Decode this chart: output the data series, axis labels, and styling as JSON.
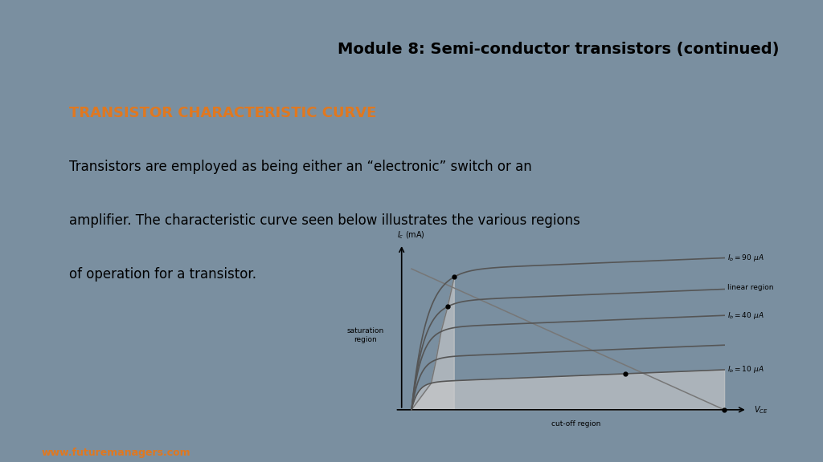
{
  "title": "Module 8: Semi-conductor transistors (continued)",
  "heading": "TRANSISTOR CHARACTERISTIC CURVE",
  "heading_color": "#E07820",
  "body_text_line1": "Transistors are employed as being either an “electronic” switch or an",
  "body_text_line2": "amplifier. The characteristic curve seen below illustrates the various regions",
  "body_text_line3": "of operation for a transistor.",
  "bg_color": "#ffffff",
  "outer_bg": "#7a8fa0",
  "title_fontsize": 14,
  "heading_fontsize": 13,
  "body_fontsize": 12,
  "footer_text": "www.futuremanagers.com",
  "footer_color": "#E07820",
  "curve_color": "#555555",
  "gray": "#777777",
  "shade_color": "#cccccc"
}
